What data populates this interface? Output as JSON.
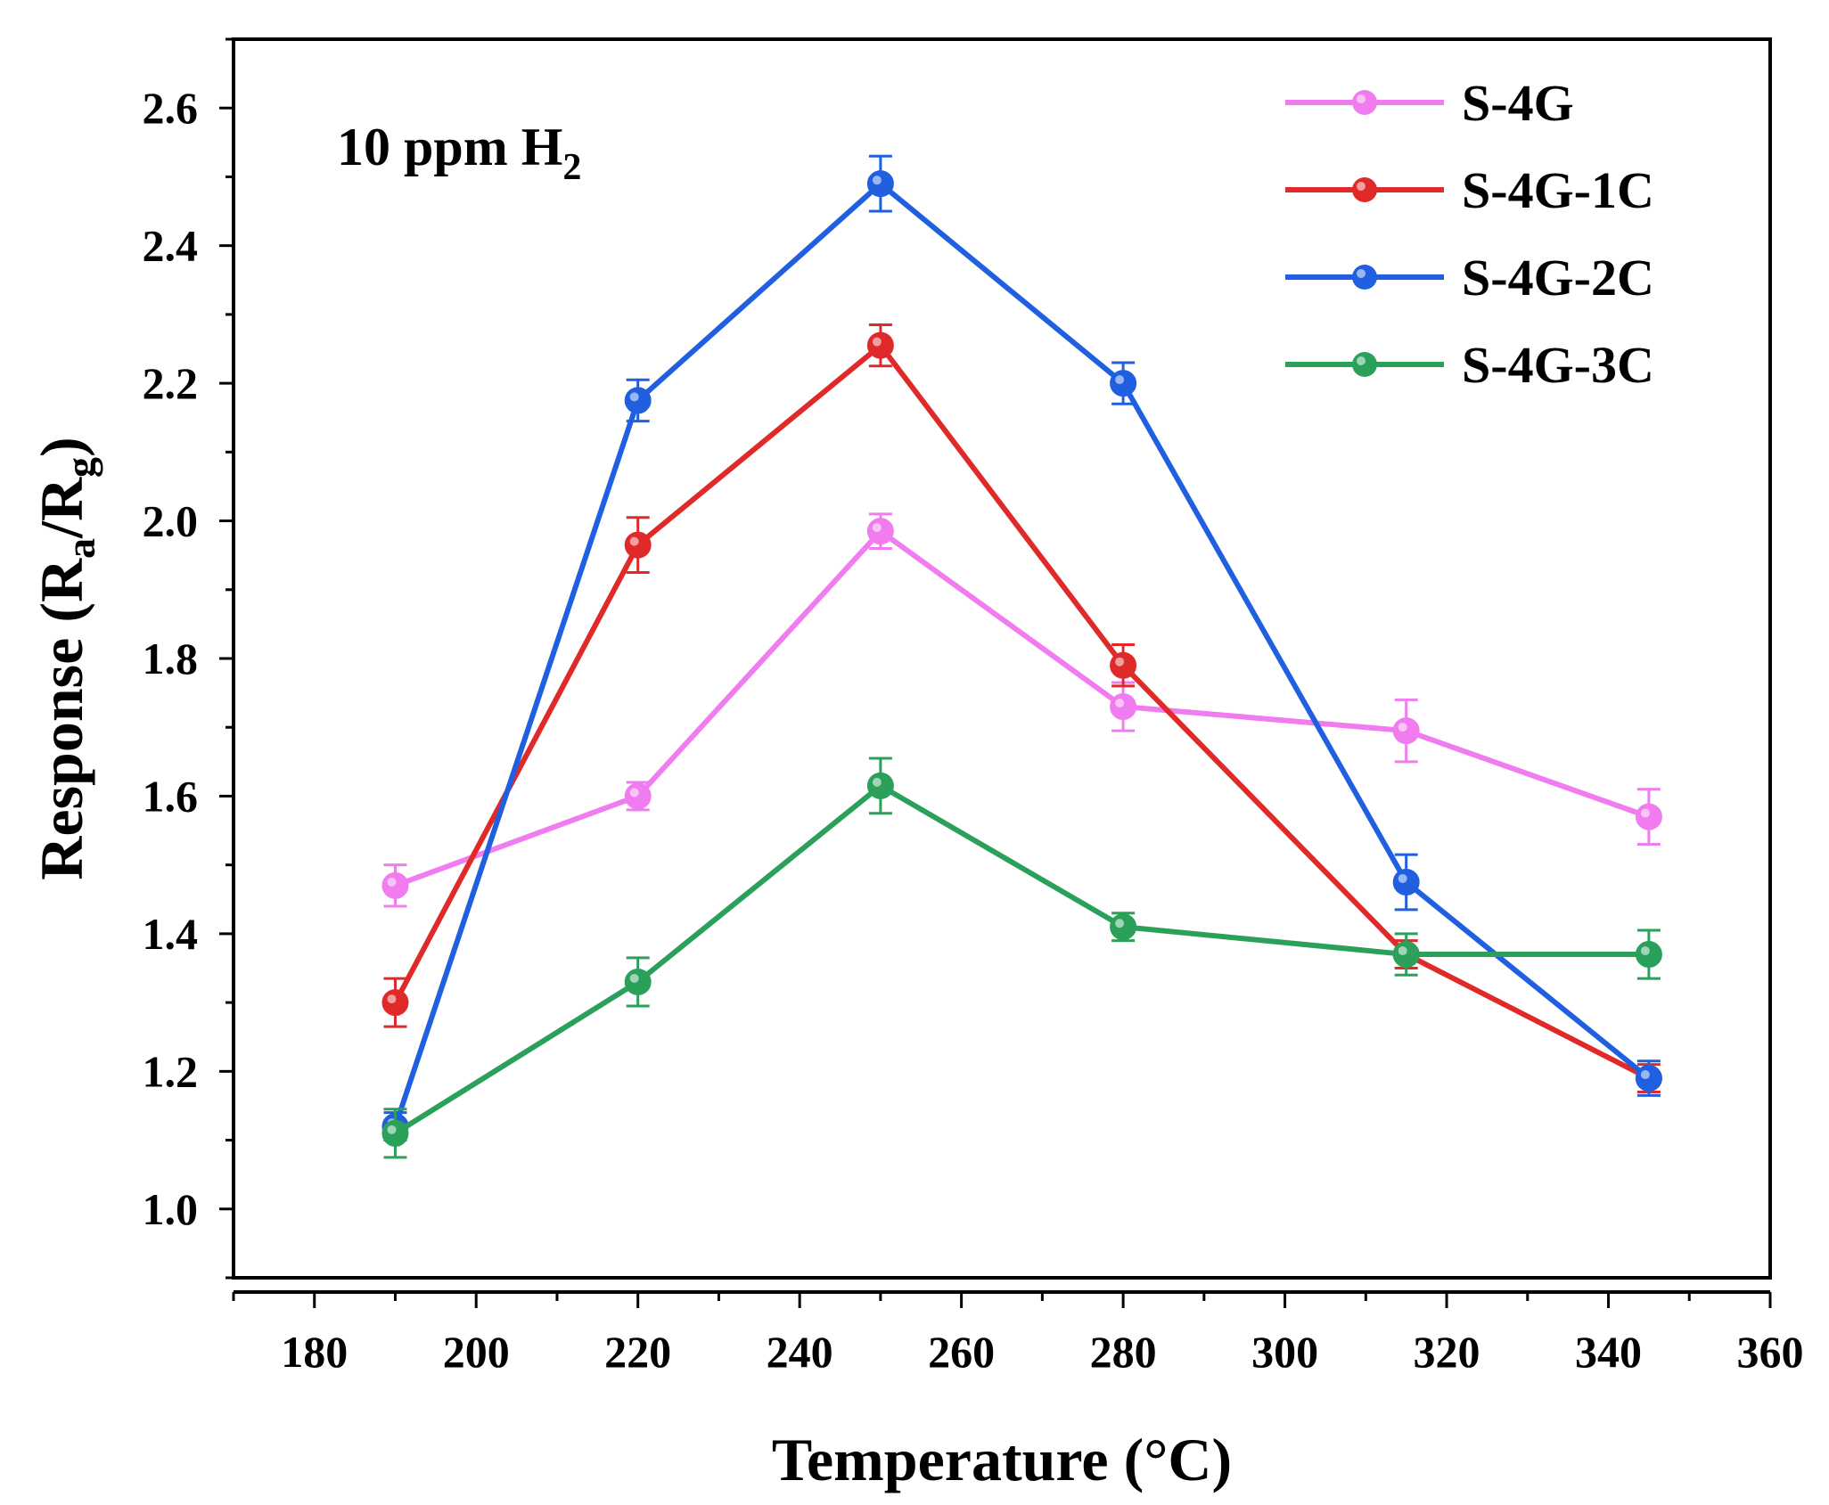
{
  "chart_data": {
    "type": "line",
    "title": "",
    "annotation": {
      "text": "10 ppm H",
      "subscript": "2"
    },
    "xlabel": "Temperature (°C)",
    "ylabel": {
      "prefix": "Response (R",
      "sub1": "a",
      "mid": "/R",
      "sub2": "g",
      "suffix": ")"
    },
    "xlim": [
      170,
      360
    ],
    "ylim": [
      0.9,
      2.7
    ],
    "xticks": [
      180,
      200,
      220,
      240,
      260,
      280,
      300,
      320,
      340,
      360
    ],
    "yticks": [
      1.0,
      1.2,
      1.4,
      1.6,
      1.8,
      2.0,
      2.2,
      2.4,
      2.6
    ],
    "ytick_labels": [
      "1.0",
      "1.2",
      "1.4",
      "1.6",
      "1.8",
      "2.0",
      "2.2",
      "2.4",
      "2.6"
    ],
    "x": [
      190,
      220,
      250,
      280,
      315,
      345
    ],
    "legend_position": "top-right",
    "series": [
      {
        "name": "S-4G",
        "color": "#F07CF0",
        "values": [
          1.47,
          1.6,
          1.985,
          1.73,
          1.695,
          1.57
        ],
        "errors": [
          0.03,
          0.02,
          0.025,
          0.035,
          0.045,
          0.04
        ]
      },
      {
        "name": "S-4G-1C",
        "color": "#E02A2A",
        "values": [
          1.3,
          1.965,
          2.255,
          1.79,
          1.37,
          1.19
        ],
        "errors": [
          0.035,
          0.04,
          0.03,
          0.03,
          0.02,
          0.02
        ]
      },
      {
        "name": "S-4G-2C",
        "color": "#2060E0",
        "values": [
          1.12,
          2.175,
          2.49,
          2.2,
          1.475,
          1.19
        ],
        "errors": [
          0.02,
          0.03,
          0.04,
          0.03,
          0.04,
          0.025
        ]
      },
      {
        "name": "S-4G-3C",
        "color": "#2BA05A",
        "values": [
          1.11,
          1.33,
          1.615,
          1.41,
          1.37,
          1.37
        ],
        "errors": [
          0.035,
          0.035,
          0.04,
          0.02,
          0.03,
          0.035
        ]
      }
    ]
  }
}
